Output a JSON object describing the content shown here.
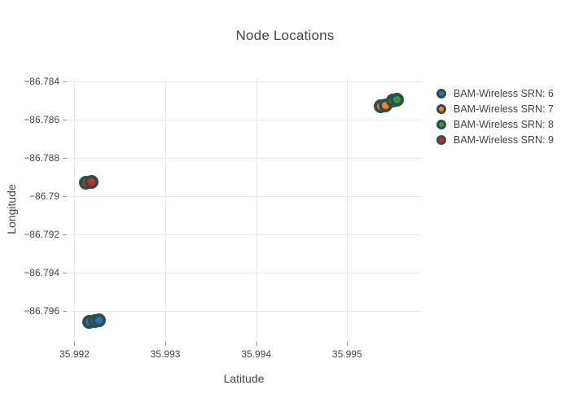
{
  "chart_data": {
    "type": "scatter",
    "title": "Node Locations",
    "xlabel": "Latitude",
    "ylabel": "Longitude",
    "xlim": [
      35.991915,
      35.995813
    ],
    "ylim": [
      -86.7976,
      -86.78377
    ],
    "grid": true,
    "legend_position": "right",
    "xticks": [
      {
        "value": 35.992,
        "label": "35.992"
      },
      {
        "value": 35.993,
        "label": "35.993"
      },
      {
        "value": 35.994,
        "label": "35.994"
      },
      {
        "value": 35.995,
        "label": "35.995"
      }
    ],
    "yticks": [
      {
        "value": -86.784,
        "label": "−86.784"
      },
      {
        "value": -86.786,
        "label": "−86.786"
      },
      {
        "value": -86.788,
        "label": "−86.788"
      },
      {
        "value": -86.79,
        "label": "−86.79"
      },
      {
        "value": -86.792,
        "label": "−86.792"
      },
      {
        "value": -86.794,
        "label": "−86.794"
      },
      {
        "value": -86.796,
        "label": "−86.796"
      }
    ],
    "series": [
      {
        "name": "BAM-Wireless SRN: 6",
        "color": "#1f77b4",
        "points": [
          [
            35.99216,
            -86.79654
          ],
          [
            35.99222,
            -86.7965
          ],
          [
            35.99227,
            -86.79647
          ]
        ]
      },
      {
        "name": "BAM-Wireless SRN: 7",
        "color": "#ff7f0e",
        "points": [
          [
            35.99537,
            -86.78529
          ],
          [
            35.99542,
            -86.78523
          ]
        ]
      },
      {
        "name": "BAM-Wireless SRN: 8",
        "color": "#2ca02c",
        "points": [
          [
            35.9955,
            -86.78497
          ],
          [
            35.99555,
            -86.78492
          ]
        ]
      },
      {
        "name": "BAM-Wireless SRN: 9",
        "color": "#d62728",
        "points": [
          [
            35.99213,
            -86.78929
          ],
          [
            35.99219,
            -86.78924
          ]
        ]
      }
    ],
    "colors": {
      "background": "#ffffff",
      "grid": "#e9e9e9",
      "tick": "#9a9a9a",
      "text": "#444444",
      "marker_outline": "#2f4f4f"
    }
  }
}
